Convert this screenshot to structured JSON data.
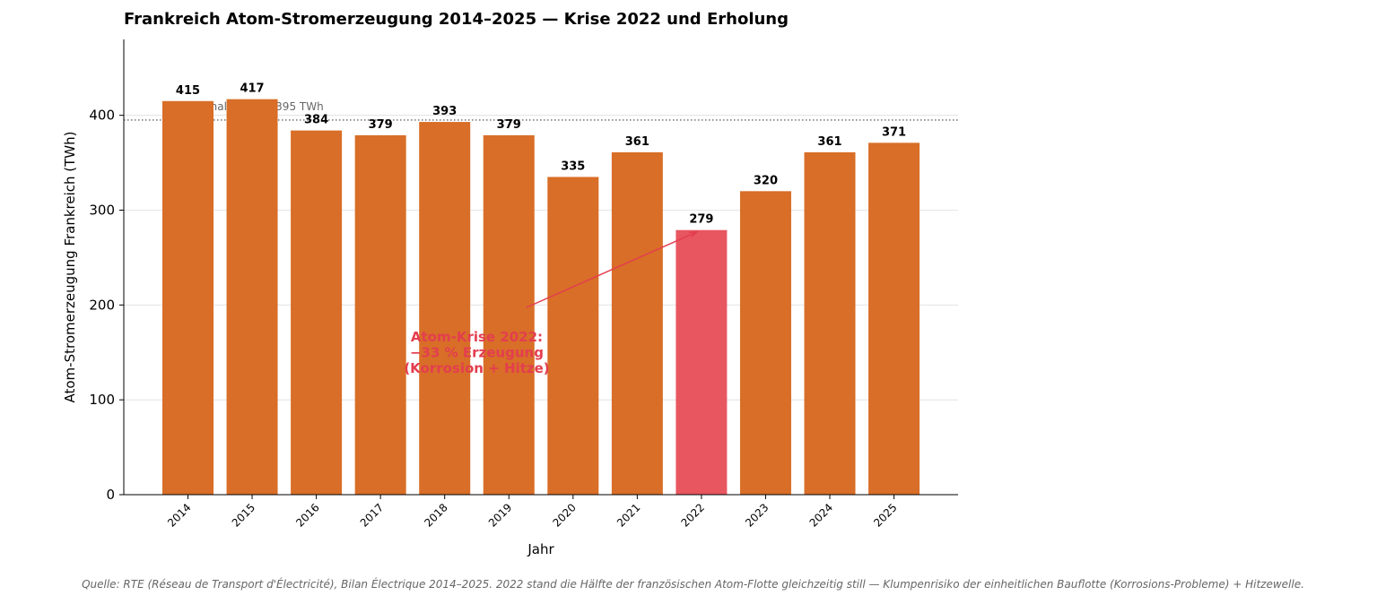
{
  "chart_data": {
    "type": "bar",
    "title": "Frankreich Atom-Stromerzeugung 2014–2025 — Krise 2022 und Erholung",
    "xlabel": "Jahr",
    "ylabel": "Atom-Stromerzeugung Frankreich (TWh)",
    "ylim": [
      0,
      480
    ],
    "yticks": [
      0,
      100,
      200,
      300,
      400
    ],
    "categories": [
      "2014",
      "2015",
      "2016",
      "2017",
      "2018",
      "2019",
      "2020",
      "2021",
      "2022",
      "2023",
      "2024",
      "2025"
    ],
    "values": [
      415,
      417,
      384,
      379,
      393,
      379,
      335,
      361,
      279,
      320,
      361,
      371
    ],
    "highlight_index": 8,
    "reference_line": {
      "value": 395,
      "label": "Normalniveau ~395 TWh",
      "style": "dotted"
    },
    "annotation": {
      "lines": [
        "Atom-Krise 2022:",
        "−33 % Erzeugung",
        "(Korrosion + Hitze)"
      ],
      "target_category": "2022",
      "target_value": 279,
      "text_x_category_pos": 4.5,
      "text_y_value": 150
    },
    "grid": "horizontal",
    "legend": "none"
  },
  "colors": {
    "bar": "#D86E27",
    "highlight": "#E85660",
    "annotation": "#E33E4F",
    "reference": "#666666",
    "grid": "#dddddd"
  },
  "caption": "Quelle: RTE (Réseau de Transport d'Électricité), Bilan Électrique 2014–2025. 2022 stand die Hälfte der französischen Atom-Flotte gleichzeitig still — Klumpenrisiko der einheitlichen Bauflotte (Korrosions-Probleme) + Hitzewelle."
}
